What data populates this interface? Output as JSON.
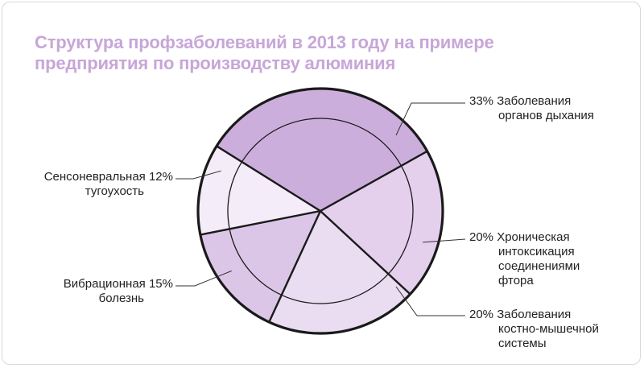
{
  "chart_data": {
    "type": "pie",
    "title_lines": [
      "Структура профзаболеваний в 2013 году на примере",
      "предприятия по производству алюминия"
    ],
    "slices": [
      {
        "label_lines": [
          "Заболевания",
          "органов дыхания"
        ],
        "value": 33,
        "value_label": "33%",
        "color": "#ccaedd"
      },
      {
        "label_lines": [
          "Хроническая",
          "интоксикация",
          "соединениями",
          "фтора"
        ],
        "value": 20,
        "value_label": "20%",
        "color": "#e4cfec"
      },
      {
        "label_lines": [
          "Заболевания",
          "костно-мышечной",
          "системы"
        ],
        "value": 20,
        "value_label": "20%",
        "color": "#eadcf1"
      },
      {
        "label_lines": [
          "Вибрационная",
          "болезнь"
        ],
        "value": 15,
        "value_label": "15%",
        "color": "#dcc6e8"
      },
      {
        "label_lines": [
          "Сенсоневральная",
          "тугоухость"
        ],
        "value": 12,
        "value_label": "12%",
        "color": "#f4ecf8"
      }
    ],
    "legend": "none"
  },
  "colors": {
    "title": "#c7a6d8",
    "outline": "#1a1a1a",
    "leader": "#333333"
  }
}
